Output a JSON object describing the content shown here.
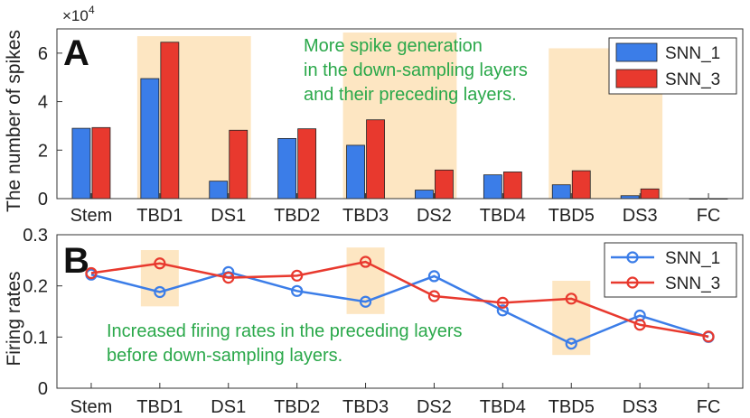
{
  "chart_data": [
    {
      "type": "bar",
      "panel_label": "A",
      "ylabel": "The number of spikes",
      "exponent_label": "×10",
      "exponent_power": "4",
      "categories": [
        "Stem",
        "TBD1",
        "DS1",
        "TBD2",
        "TBD3",
        "DS2",
        "TBD4",
        "TBD5",
        "DS3",
        "FC"
      ],
      "yticks": [
        "0",
        "2",
        "4",
        "6"
      ],
      "ylim": [
        0,
        7
      ],
      "series": [
        {
          "name": "SNN_1",
          "color": "#3b7de8",
          "values": [
            2.9,
            4.95,
            0.72,
            2.48,
            2.2,
            0.35,
            0.98,
            0.57,
            0.12,
            0.0
          ]
        },
        {
          "name": "SNN_3",
          "color": "#e8392e",
          "values": [
            2.93,
            6.45,
            2.82,
            2.88,
            3.25,
            1.18,
            1.1,
            1.15,
            0.4,
            0.0
          ]
        }
      ],
      "highlight_groups": [
        [
          1,
          2
        ],
        [
          4,
          5
        ],
        [
          7,
          8
        ]
      ],
      "annotation": [
        "More spike generation",
        "in the down-sampling layers",
        "and their preceding layers."
      ],
      "legend_position": "top-right"
    },
    {
      "type": "line",
      "panel_label": "B",
      "ylabel": "Firing rates",
      "categories": [
        "Stem",
        "TBD1",
        "DS1",
        "TBD2",
        "TBD3",
        "DS2",
        "TBD4",
        "TBD5",
        "DS3",
        "FC"
      ],
      "yticks": [
        "0",
        "0.1",
        "0.2",
        "0.3"
      ],
      "ylim": [
        0,
        0.3
      ],
      "series": [
        {
          "name": "SNN_1",
          "color": "#3b7de8",
          "values": [
            0.222,
            0.188,
            0.227,
            0.19,
            0.169,
            0.219,
            0.152,
            0.087,
            0.142,
            0.1
          ]
        },
        {
          "name": "SNN_3",
          "color": "#e8392e",
          "values": [
            0.225,
            0.244,
            0.216,
            0.22,
            0.247,
            0.18,
            0.167,
            0.175,
            0.124,
            0.101
          ]
        }
      ],
      "highlight_indices": [
        1,
        4,
        7
      ],
      "annotation": [
        "Increased firing rates in the preceding layers",
        "before down-sampling layers."
      ],
      "legend_position": "top-right"
    }
  ],
  "colors": {
    "highlight": "#fde6c2",
    "annotation_text": "#2aa84a"
  }
}
